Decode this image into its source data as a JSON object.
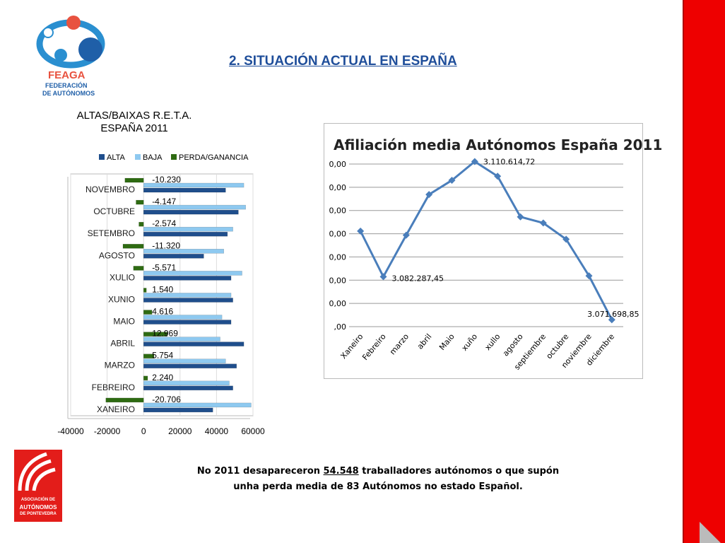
{
  "slide": {
    "title": "2. SITUACIÓN ACTUAL EN ESPAÑA",
    "footer": {
      "pre": "No  2011 desapareceron  ",
      "highlight": "54.548",
      "post": " traballadores autónomos o que supón",
      "line2": "unha perda media de 83 Autónomos no estado Español."
    },
    "accent_color": "#ee0000"
  },
  "logos": {
    "feaga": {
      "name": "FEAGA",
      "subtitle_1": "FEDERACIÓN",
      "subtitle_2": "DE AUTÓNOMOS"
    },
    "asociacion": {
      "line1": "ASOCIACIÓN DE",
      "line2": "AUTÓNOMOS",
      "line3": "DE PONTEVEDRA"
    }
  },
  "chart_data": [
    {
      "type": "bar",
      "orientation": "horizontal",
      "title": "ALTAS/BAIXAS R.E.T.A.",
      "subtitle": "ESPAÑA 2011",
      "legend_position": "top",
      "categories": [
        "XANEIRO",
        "FEBREIRO",
        "MARZO",
        "ABRIL",
        "MAIO",
        "XUNIO",
        "XULIO",
        "AGOSTO",
        "SETEMBRO",
        "OCTUBRE",
        "NOVEMBRO"
      ],
      "series": [
        {
          "name": "ALTA",
          "color": "#1f4e8c",
          "values": [
            38000,
            49000,
            51000,
            55000,
            48000,
            49000,
            48000,
            33000,
            46000,
            52000,
            45000
          ]
        },
        {
          "name": "BAJA",
          "color": "#8ec9f0",
          "values": [
            59000,
            47000,
            45000,
            42000,
            43000,
            48000,
            54000,
            44000,
            49000,
            56000,
            55000
          ]
        },
        {
          "name": "PERDA/GANANCIA",
          "color": "#2e6b12",
          "values": [
            -20706,
            2240,
            5754,
            12969,
            4616,
            1540,
            -5571,
            -11320,
            -2574,
            -4147,
            -10230
          ]
        }
      ],
      "data_labels": [
        "-20.706",
        "2.240",
        "5.754",
        "12.969",
        "4.616",
        "1.540",
        "-5.571",
        "-11.320",
        "-2.574",
        "-4.147",
        "-10.230"
      ],
      "xlim": [
        -40000,
        60000
      ],
      "xticks": [
        "-40000",
        "-20000",
        "0",
        "20000",
        "40000",
        "60000"
      ]
    },
    {
      "type": "line",
      "title": "Afiliación media Autónomos   España 2011",
      "x": [
        "Xaneiro",
        "Febreiro",
        "marzo",
        "abril",
        "Maio",
        "xuño",
        "xullo",
        "agosto",
        "septiembre",
        "octubre",
        "noviembre",
        "diciembre"
      ],
      "series": [
        {
          "name": "",
          "color": "#4a7ebb",
          "values": [
            3093500,
            3082287.45,
            3092500,
            3102500,
            3106000,
            3110614.72,
            3107000,
            3097000,
            3095500,
            3091500,
            3082500,
            3071698.85
          ]
        }
      ],
      "ylim": [
        3070000,
        3110000
      ],
      "ytick_labels": [
        ",00",
        "0,00",
        "0,00",
        "0,00",
        "0,00",
        "0,00",
        "0,00",
        "0,00"
      ],
      "data_labels": [
        {
          "index": 1,
          "text": "3.082.287,45"
        },
        {
          "index": 5,
          "text": "3.110.614,72"
        },
        {
          "index": 11,
          "text": "3.071.698,85"
        }
      ],
      "grid": true
    }
  ]
}
